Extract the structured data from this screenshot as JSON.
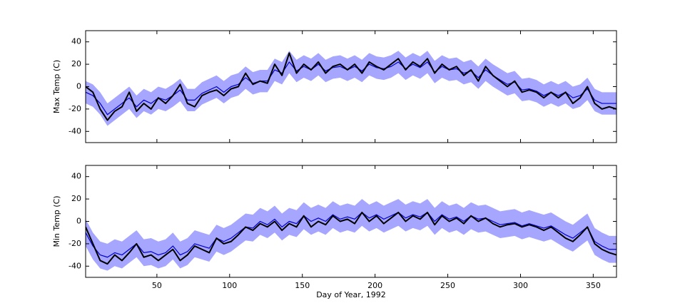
{
  "chart_data": [
    {
      "type": "line",
      "ylabel": "Max Temp (C)",
      "x": [
        1,
        6,
        11,
        16,
        21,
        26,
        31,
        36,
        41,
        46,
        51,
        56,
        61,
        66,
        71,
        76,
        81,
        86,
        91,
        96,
        101,
        106,
        111,
        116,
        121,
        126,
        131,
        136,
        141,
        146,
        151,
        156,
        161,
        166,
        171,
        176,
        181,
        186,
        191,
        196,
        201,
        206,
        211,
        216,
        221,
        226,
        231,
        236,
        241,
        246,
        251,
        256,
        261,
        266,
        271,
        276,
        281,
        286,
        291,
        296,
        301,
        306,
        311,
        316,
        321,
        326,
        331,
        336,
        341,
        346,
        351,
        356,
        361,
        366
      ],
      "xlim": [
        1,
        366
      ],
      "xticks": [
        50,
        100,
        150,
        200,
        250,
        300,
        350
      ],
      "ylim": [
        -50,
        50
      ],
      "yticks": [
        -40,
        -20,
        0,
        20,
        40
      ],
      "band": {
        "color": "#a6a6ff",
        "low": [
          -15,
          -18,
          -25,
          -35,
          -30,
          -25,
          -20,
          -28,
          -22,
          -25,
          -20,
          -22,
          -18,
          -13,
          -22,
          -22,
          -16,
          -13,
          -10,
          -15,
          -10,
          -8,
          -2,
          -7,
          -5,
          -5,
          5,
          2,
          12,
          4,
          8,
          5,
          10,
          4,
          7,
          8,
          5,
          8,
          4,
          10,
          7,
          6,
          8,
          12,
          6,
          10,
          7,
          12,
          3,
          8,
          5,
          6,
          2,
          4,
          -2,
          5,
          0,
          -4,
          -8,
          -6,
          -13,
          -12,
          -14,
          -18,
          -15,
          -18,
          -15,
          -20,
          -18,
          -12,
          -22,
          -25,
          -25,
          -25
        ],
        "high": [
          5,
          2,
          -5,
          -15,
          -10,
          -5,
          0,
          -8,
          -2,
          -5,
          0,
          -2,
          2,
          7,
          -2,
          -2,
          4,
          7,
          10,
          5,
          10,
          12,
          18,
          13,
          15,
          15,
          25,
          22,
          32,
          24,
          28,
          25,
          30,
          24,
          27,
          28,
          25,
          28,
          24,
          30,
          27,
          26,
          28,
          32,
          26,
          30,
          27,
          32,
          23,
          28,
          25,
          26,
          22,
          24,
          18,
          25,
          20,
          16,
          12,
          14,
          7,
          8,
          6,
          2,
          5,
          2,
          5,
          0,
          2,
          8,
          -2,
          -5,
          -5,
          -5
        ]
      },
      "series": [
        {
          "color": "#0000cc",
          "width": 1.2,
          "values": [
            -5,
            -8,
            -15,
            -25,
            -20,
            -15,
            -10,
            -18,
            -12,
            -15,
            -10,
            -12,
            -8,
            -3,
            -12,
            -12,
            -6,
            -3,
            0,
            -5,
            0,
            2,
            8,
            3,
            5,
            5,
            15,
            12,
            22,
            14,
            18,
            15,
            20,
            14,
            17,
            18,
            15,
            18,
            14,
            20,
            17,
            16,
            18,
            22,
            16,
            20,
            17,
            22,
            13,
            18,
            15,
            16,
            12,
            14,
            8,
            15,
            10,
            6,
            2,
            4,
            -3,
            -2,
            -4,
            -8,
            -5,
            -8,
            -5,
            -10,
            -8,
            -2,
            -12,
            -15,
            -15,
            -15
          ]
        },
        {
          "color": "#000000",
          "width": 2,
          "values": [
            0,
            -5,
            -20,
            -30,
            -22,
            -18,
            -5,
            -22,
            -15,
            -20,
            -10,
            -15,
            -8,
            2,
            -15,
            -18,
            -8,
            -5,
            -3,
            -8,
            -2,
            0,
            12,
            2,
            5,
            3,
            20,
            10,
            30,
            12,
            20,
            15,
            22,
            12,
            18,
            20,
            15,
            20,
            12,
            22,
            18,
            15,
            20,
            25,
            15,
            22,
            18,
            25,
            12,
            20,
            15,
            18,
            10,
            15,
            5,
            18,
            10,
            5,
            0,
            5,
            -5,
            -3,
            -5,
            -10,
            -5,
            -10,
            -5,
            -15,
            -10,
            0,
            -15,
            -20,
            -18,
            -20
          ]
        }
      ]
    },
    {
      "type": "line",
      "ylabel": "Min Temp (C)",
      "xlabel": "Day of Year, 1992",
      "x": [
        1,
        6,
        11,
        16,
        21,
        26,
        31,
        36,
        41,
        46,
        51,
        56,
        61,
        66,
        71,
        76,
        81,
        86,
        91,
        96,
        101,
        106,
        111,
        116,
        121,
        126,
        131,
        136,
        141,
        146,
        151,
        156,
        161,
        166,
        171,
        176,
        181,
        186,
        191,
        196,
        201,
        206,
        211,
        216,
        221,
        226,
        231,
        236,
        241,
        246,
        251,
        256,
        261,
        266,
        271,
        276,
        281,
        286,
        291,
        296,
        301,
        306,
        311,
        316,
        321,
        326,
        331,
        336,
        341,
        346,
        351,
        356,
        361,
        366
      ],
      "xlim": [
        1,
        366
      ],
      "xticks": [
        50,
        100,
        150,
        200,
        250,
        300,
        350
      ],
      "ylim": [
        -50,
        50
      ],
      "yticks": [
        -40,
        -20,
        0,
        20,
        40
      ],
      "band": {
        "color": "#a6a6ff",
        "low": [
          -22,
          -34,
          -42,
          -44,
          -40,
          -42,
          -37,
          -32,
          -40,
          -39,
          -42,
          -40,
          -34,
          -42,
          -39,
          -32,
          -34,
          -36,
          -27,
          -30,
          -27,
          -22,
          -17,
          -18,
          -12,
          -15,
          -10,
          -17,
          -12,
          -14,
          -7,
          -12,
          -9,
          -12,
          -6,
          -10,
          -8,
          -10,
          -4,
          -9,
          -6,
          -10,
          -7,
          -4,
          -9,
          -6,
          -8,
          -4,
          -12,
          -6,
          -10,
          -8,
          -12,
          -7,
          -10,
          -9,
          -12,
          -15,
          -14,
          -13,
          -16,
          -14,
          -16,
          -18,
          -16,
          -20,
          -24,
          -27,
          -22,
          -17,
          -30,
          -34,
          -37,
          -37
        ],
        "high": [
          2,
          -10,
          -18,
          -20,
          -16,
          -18,
          -13,
          -8,
          -16,
          -15,
          -18,
          -16,
          -10,
          -18,
          -15,
          -8,
          -10,
          -12,
          -3,
          -6,
          -3,
          2,
          7,
          6,
          12,
          9,
          14,
          7,
          12,
          10,
          17,
          12,
          15,
          12,
          18,
          14,
          16,
          14,
          20,
          15,
          18,
          14,
          17,
          20,
          15,
          18,
          16,
          20,
          12,
          18,
          14,
          16,
          12,
          17,
          14,
          15,
          12,
          9,
          10,
          11,
          8,
          10,
          8,
          6,
          8,
          4,
          0,
          -3,
          2,
          7,
          -6,
          -10,
          -13,
          -13
        ]
      },
      "series": [
        {
          "color": "#0000cc",
          "width": 1.2,
          "values": [
            -10,
            -22,
            -30,
            -32,
            -28,
            -30,
            -25,
            -20,
            -28,
            -27,
            -30,
            -28,
            -22,
            -30,
            -27,
            -20,
            -22,
            -24,
            -15,
            -18,
            -15,
            -10,
            -5,
            -6,
            0,
            -3,
            2,
            -5,
            0,
            -2,
            5,
            0,
            3,
            0,
            6,
            2,
            4,
            2,
            8,
            3,
            6,
            2,
            5,
            8,
            3,
            6,
            4,
            8,
            0,
            6,
            2,
            4,
            0,
            5,
            2,
            3,
            0,
            -3,
            -2,
            -1,
            -4,
            -2,
            -4,
            -6,
            -4,
            -8,
            -12,
            -15,
            -10,
            -5,
            -18,
            -22,
            -25,
            -25
          ]
        },
        {
          "color": "#000000",
          "width": 2,
          "values": [
            -5,
            -20,
            -35,
            -38,
            -30,
            -35,
            -28,
            -20,
            -32,
            -30,
            -35,
            -30,
            -25,
            -35,
            -30,
            -22,
            -25,
            -28,
            -15,
            -20,
            -18,
            -12,
            -5,
            -8,
            -2,
            -5,
            0,
            -8,
            -2,
            -5,
            5,
            -5,
            0,
            -3,
            5,
            0,
            2,
            -2,
            8,
            0,
            5,
            -2,
            3,
            8,
            0,
            5,
            2,
            8,
            -3,
            5,
            0,
            3,
            -2,
            5,
            0,
            3,
            -2,
            -5,
            -3,
            -2,
            -5,
            -3,
            -5,
            -8,
            -5,
            -10,
            -15,
            -18,
            -12,
            -5,
            -20,
            -25,
            -28,
            -30
          ]
        }
      ]
    }
  ]
}
